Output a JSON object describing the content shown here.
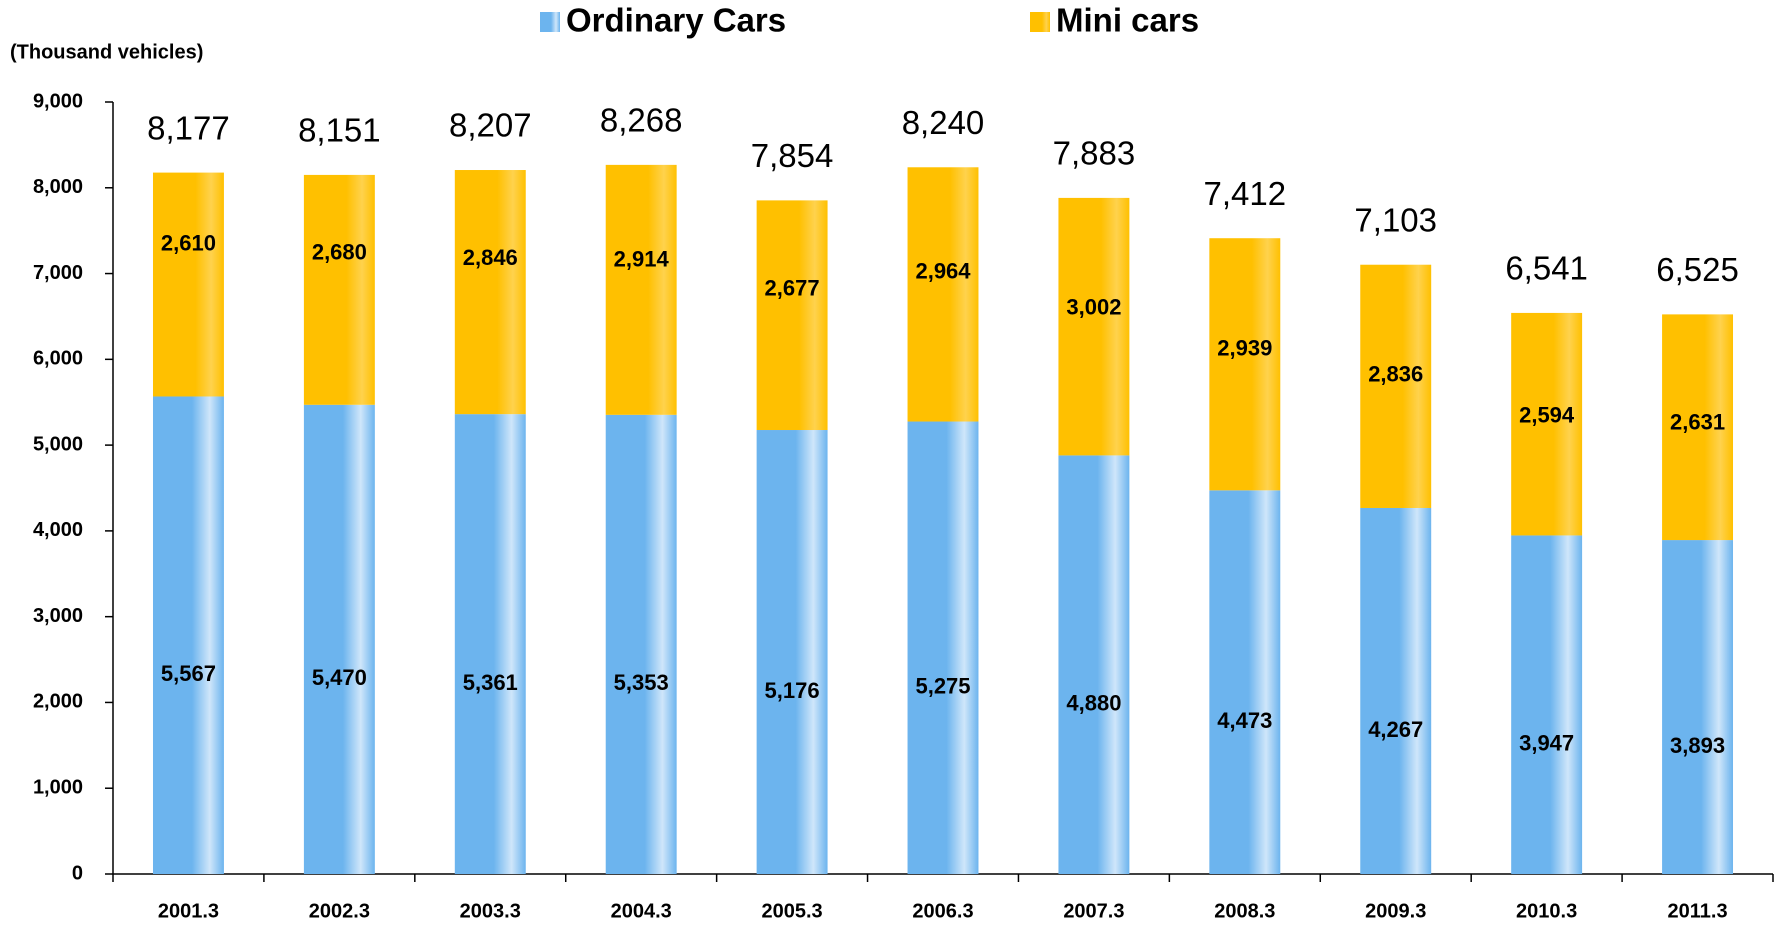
{
  "chart_data": {
    "type": "stacked_bar",
    "y_axis_label": "(Thousand vehicles)",
    "categories": [
      "2001.3",
      "2002.3",
      "2003.3",
      "2004.3",
      "2005.3",
      "2006.3",
      "2007.3",
      "2008.3",
      "2009.3",
      "2010.3",
      "2011.3"
    ],
    "series": [
      {
        "name": "Ordinary Cars",
        "color": "#6cb4ee",
        "values": [
          5567,
          5470,
          5361,
          5353,
          5176,
          5275,
          4880,
          4473,
          4267,
          3947,
          3893
        ],
        "value_labels": [
          "5,567",
          "5,470",
          "5,361",
          "5,353",
          "5,176",
          "5,275",
          "4,880",
          "4,473",
          "4,267",
          "3,947",
          "3,893"
        ]
      },
      {
        "name": "Mini cars",
        "color": "#ffc000",
        "values": [
          2610,
          2680,
          2846,
          2914,
          2677,
          2964,
          3002,
          2939,
          2836,
          2594,
          2631
        ],
        "value_labels": [
          "2,610",
          "2,680",
          "2,846",
          "2,914",
          "2,677",
          "2,964",
          "3,002",
          "2,939",
          "2,836",
          "2,594",
          "2,631"
        ]
      }
    ],
    "totals": [
      8177,
      8151,
      8207,
      8268,
      7854,
      8240,
      7883,
      7412,
      7103,
      6541,
      6525
    ],
    "total_labels": [
      "8,177",
      "8,151",
      "8,207",
      "8,268",
      "7,854",
      "8,240",
      "7,883",
      "7,412",
      "7,103",
      "6,541",
      "6,525"
    ],
    "ylim": [
      0,
      9000
    ],
    "yticks": [
      0,
      {
        "value": 1000,
        "label": "1,000"
      },
      {
        "value": 2000,
        "label": "2,000"
      },
      {
        "value": 3000,
        "label": "3,000"
      },
      {
        "value": 4000,
        "label": "4,000"
      },
      {
        "value": 5000,
        "label": "5,000"
      },
      {
        "value": 6000,
        "label": "6,000"
      },
      {
        "value": 7000,
        "label": "7,000"
      },
      {
        "value": 8000,
        "label": "8,000"
      },
      {
        "value": 9000,
        "label": "9,000"
      }
    ],
    "legend": "top"
  }
}
